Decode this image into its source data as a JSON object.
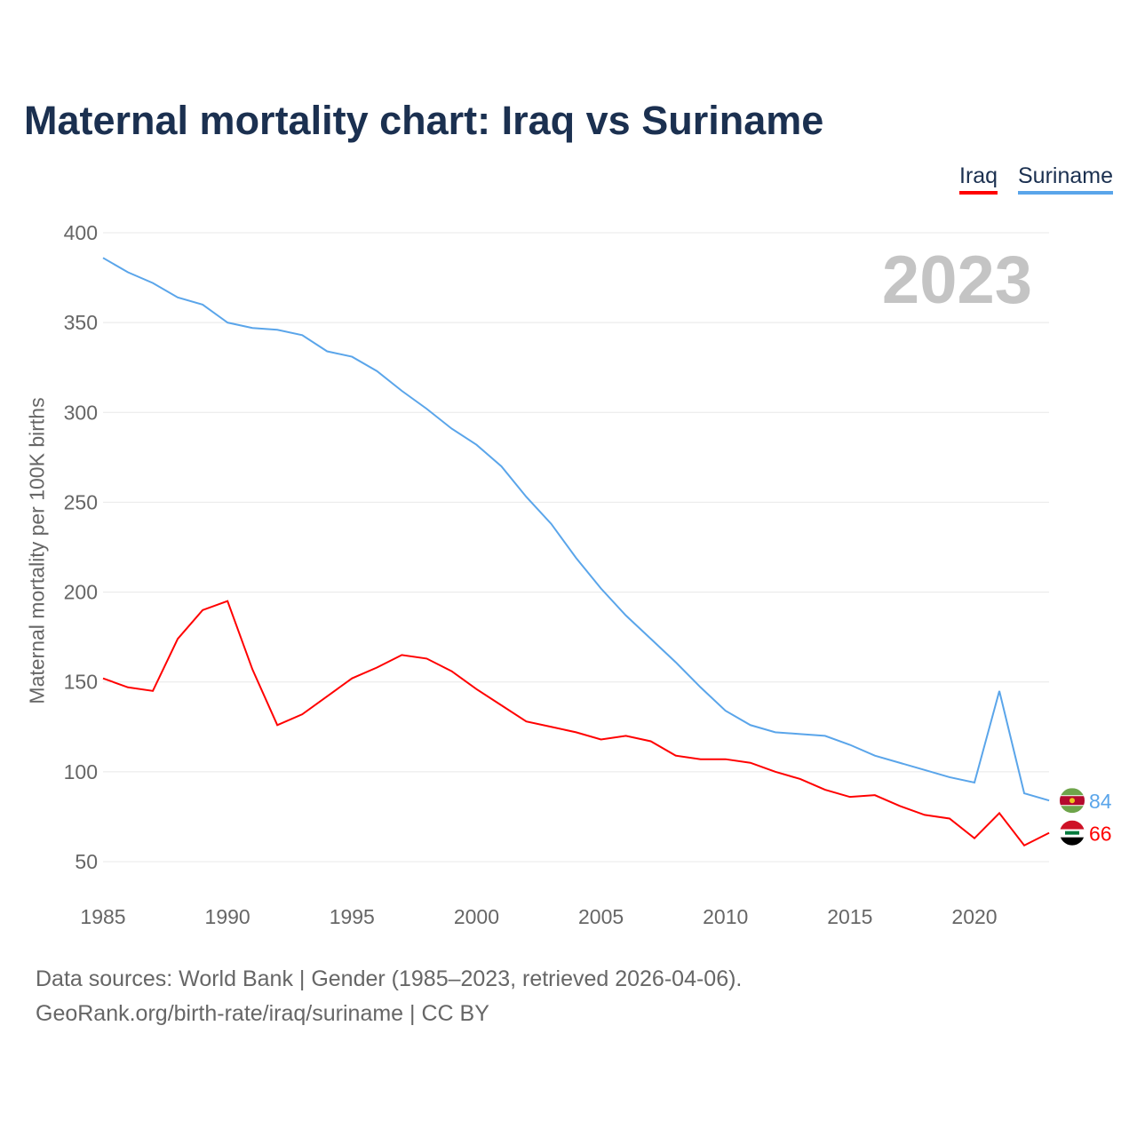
{
  "chart_data": {
    "type": "line",
    "title": "Maternal mortality chart: Iraq vs Suriname",
    "ylabel": "Maternal mortality per 100K births",
    "xlabel": "",
    "year_label": "2023",
    "ylim": [
      40,
      400
    ],
    "xlim": [
      1985,
      2023
    ],
    "yticks": [
      50,
      100,
      150,
      200,
      250,
      300,
      350,
      400
    ],
    "xticks": [
      1985,
      1990,
      1995,
      2000,
      2005,
      2010,
      2015,
      2020
    ],
    "grid": true,
    "legend_placement": "top-right",
    "x": [
      1985,
      1986,
      1987,
      1988,
      1989,
      1990,
      1991,
      1992,
      1993,
      1994,
      1995,
      1996,
      1997,
      1998,
      1999,
      2000,
      2001,
      2002,
      2003,
      2004,
      2005,
      2006,
      2007,
      2008,
      2009,
      2010,
      2011,
      2012,
      2013,
      2014,
      2015,
      2016,
      2017,
      2018,
      2019,
      2020,
      2021,
      2022,
      2023
    ],
    "series": [
      {
        "name": "Iraq",
        "color": "#ff0000",
        "end_label": "66",
        "values": [
          152,
          147,
          145,
          174,
          190,
          195,
          157,
          126,
          132,
          142,
          152,
          158,
          165,
          163,
          156,
          146,
          137,
          128,
          125,
          122,
          118,
          120,
          117,
          109,
          107,
          107,
          105,
          100,
          96,
          90,
          86,
          87,
          81,
          76,
          74,
          63,
          77,
          59,
          66
        ]
      },
      {
        "name": "Suriname",
        "color": "#5aa5ea",
        "end_label": "84",
        "values": [
          386,
          378,
          372,
          364,
          360,
          350,
          347,
          346,
          343,
          334,
          331,
          323,
          312,
          302,
          291,
          282,
          270,
          253,
          238,
          219,
          202,
          187,
          174,
          161,
          147,
          134,
          126,
          122,
          121,
          120,
          115,
          109,
          105,
          101,
          97,
          94,
          145,
          88,
          84
        ]
      }
    ]
  },
  "footer": {
    "line1": "Data sources: World Bank | Gender (1985–2023, retrieved 2026-04-06).",
    "line2": "GeoRank.org/birth-rate/iraq/suriname | CC BY"
  }
}
